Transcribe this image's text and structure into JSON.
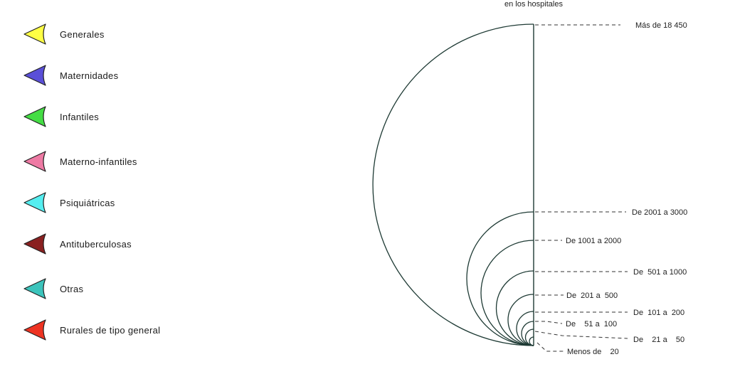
{
  "diagram": {
    "title_line": "en los hospitales",
    "ranges": [
      {
        "label": "Más de 18 450"
      },
      {
        "label": "De 2001 a 3000"
      },
      {
        "label": "De 1001 a 2000"
      },
      {
        "label": "De  501 a 1000"
      },
      {
        "label": "De  201 a  500"
      },
      {
        "label": "De  101 a  200"
      },
      {
        "label": "De    51 a  100"
      },
      {
        "label": "De    21 a    50"
      },
      {
        "label": "Menos de    20"
      }
    ]
  },
  "legend": {
    "items": [
      {
        "label": "Generales",
        "color": "#ffff44"
      },
      {
        "label": "Maternidades",
        "color": "#5a4fd8"
      },
      {
        "label": "Infantiles",
        "color": "#44dd44"
      },
      {
        "label": "Materno-infantiles",
        "color": "#ee7aa4"
      },
      {
        "label": "Psiquiátricas",
        "color": "#55eef0"
      },
      {
        "label": "Antituberculosas",
        "color": "#8a2020"
      },
      {
        "label": "Otras",
        "color": "#3cc4bc"
      },
      {
        "label": "Rurales de tipo general",
        "color": "#ee3322"
      }
    ]
  }
}
